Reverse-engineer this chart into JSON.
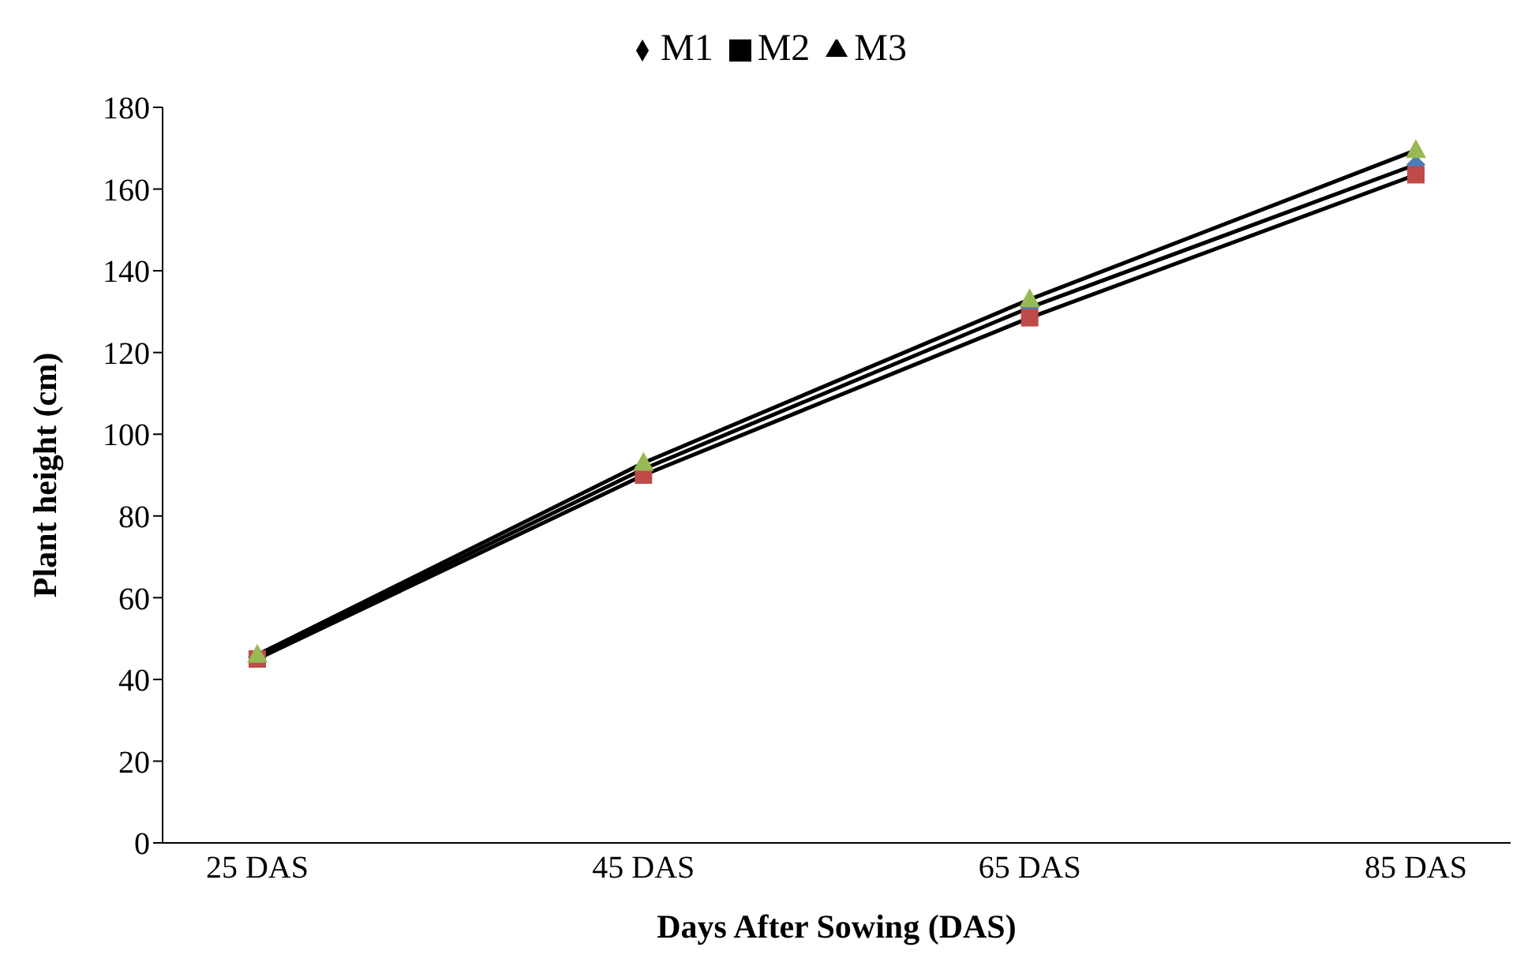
{
  "chart_data": {
    "type": "line",
    "xlabel": "Days After Sowing (DAS)",
    "ylabel": "Plant height (cm)",
    "categories": [
      "25 DAS",
      "45 DAS",
      "65 DAS",
      "85 DAS"
    ],
    "series": [
      {
        "name": "M1",
        "color": "#4a7ebb",
        "marker": "diamond",
        "values": [
          45.5,
          91.5,
          131,
          166
        ]
      },
      {
        "name": "M2",
        "color": "#be4b48",
        "marker": "square",
        "values": [
          45,
          90,
          128.5,
          163.5
        ]
      },
      {
        "name": "M3",
        "color": "#98b954",
        "marker": "triangle",
        "values": [
          46,
          93,
          133,
          169.5
        ]
      }
    ],
    "ylim": [
      0,
      180
    ],
    "yticks": [
      0,
      20,
      40,
      60,
      80,
      100,
      120,
      140,
      160,
      180
    ],
    "grid": false,
    "legend": "top"
  }
}
